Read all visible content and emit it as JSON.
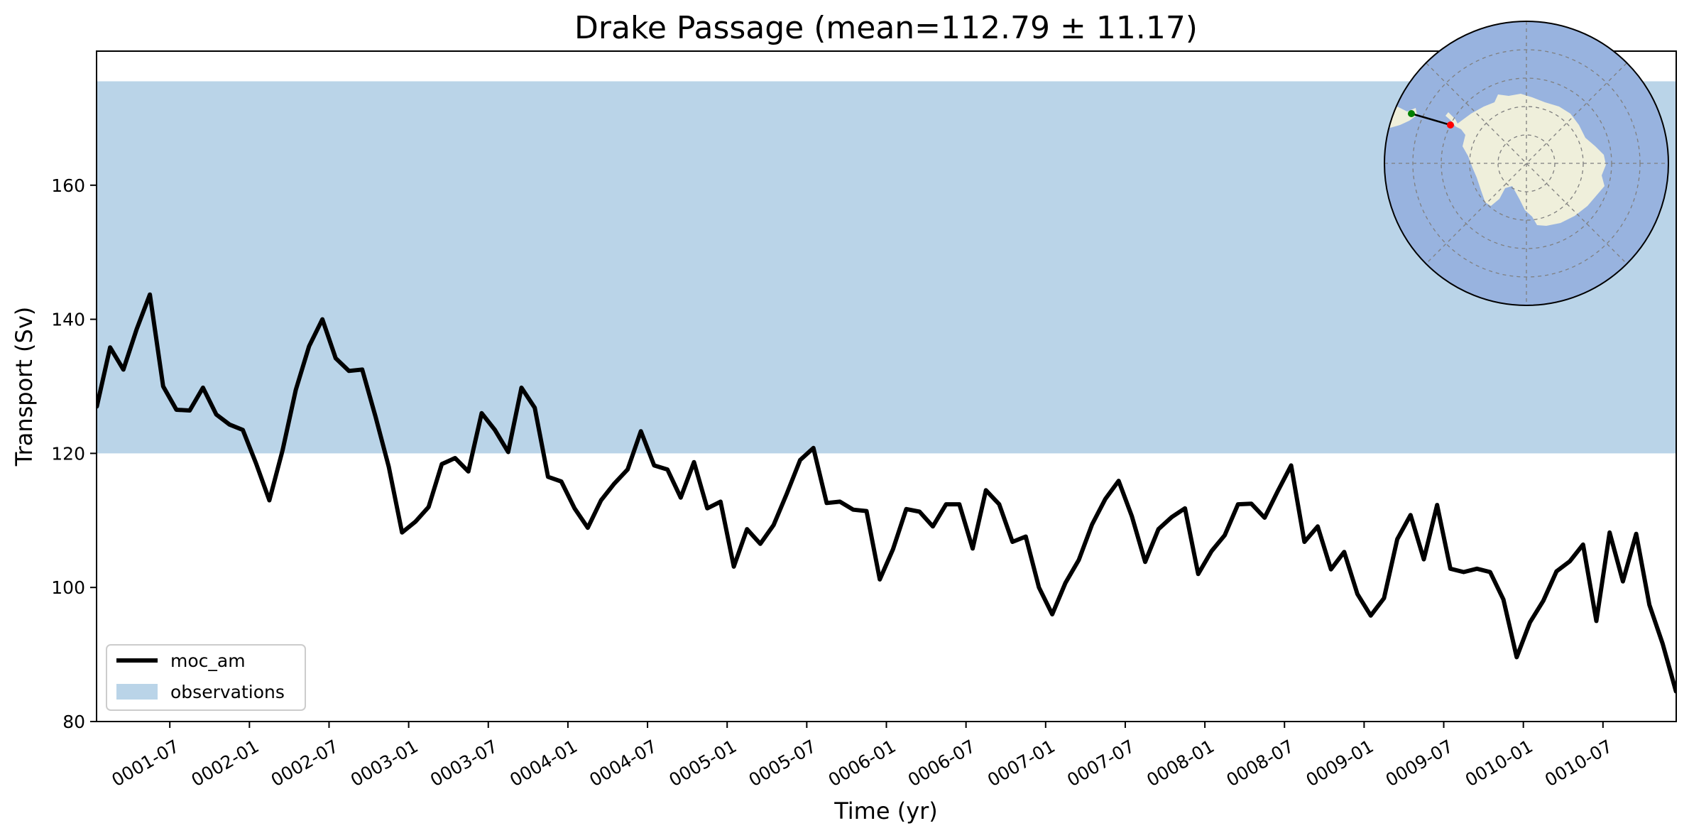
{
  "chart_data": {
    "type": "line",
    "title": "Drake Passage (mean=112.79 ± 11.17)",
    "xlabel": "Time (yr)",
    "ylabel": "Transport (Sv)",
    "ylim": [
      80,
      180
    ],
    "yticks": [
      80,
      100,
      120,
      140,
      160
    ],
    "xlim": [
      0.04,
      9.96
    ],
    "xticks": [
      {
        "label": "0001-07",
        "t": 0.5
      },
      {
        "label": "0002-01",
        "t": 1.0
      },
      {
        "label": "0002-07",
        "t": 1.5
      },
      {
        "label": "0003-01",
        "t": 2.0
      },
      {
        "label": "0003-07",
        "t": 2.5
      },
      {
        "label": "0004-01",
        "t": 3.0
      },
      {
        "label": "0004-07",
        "t": 3.5
      },
      {
        "label": "0005-01",
        "t": 4.0
      },
      {
        "label": "0005-07",
        "t": 4.5
      },
      {
        "label": "0006-01",
        "t": 5.0
      },
      {
        "label": "0006-07",
        "t": 5.5
      },
      {
        "label": "0007-01",
        "t": 6.0
      },
      {
        "label": "0007-07",
        "t": 6.5
      },
      {
        "label": "0008-01",
        "t": 7.0
      },
      {
        "label": "0008-07",
        "t": 7.5
      },
      {
        "label": "0009-01",
        "t": 8.0
      },
      {
        "label": "0009-07",
        "t": 8.5
      },
      {
        "label": "0010-01",
        "t": 9.0
      },
      {
        "label": "0010-07",
        "t": 9.5
      }
    ],
    "observations": {
      "name": "observations",
      "low": 120,
      "high": 175.5,
      "color": "#bad4e8"
    },
    "series": [
      {
        "name": "moc_am",
        "color": "#000000",
        "values": [
          127.0,
          135.8,
          132.5,
          138.5,
          143.7,
          130.0,
          126.5,
          126.4,
          129.8,
          125.8,
          124.3,
          123.5,
          118.5,
          113.0,
          120.5,
          129.5,
          136.0,
          140.0,
          134.2,
          132.3,
          132.5,
          125.5,
          118.0,
          108.2,
          109.8,
          112.0,
          118.4,
          119.3,
          117.3,
          126.0,
          123.5,
          120.2,
          129.8,
          126.8,
          116.5,
          115.8,
          111.8,
          108.9,
          113.0,
          115.5,
          117.6,
          123.3,
          118.2,
          117.6,
          113.4,
          118.7,
          111.8,
          112.8,
          103.1,
          108.7,
          106.5,
          109.3,
          114.0,
          119.0,
          120.8,
          112.6,
          112.8,
          111.6,
          111.4,
          101.2,
          105.7,
          111.7,
          111.3,
          109.1,
          112.4,
          112.4,
          105.8,
          114.5,
          112.4,
          106.8,
          107.6,
          100.0,
          96.0,
          100.7,
          104.1,
          109.4,
          113.2,
          115.9,
          110.6,
          103.8,
          108.7,
          110.5,
          111.8,
          102.0,
          105.4,
          107.8,
          112.4,
          112.5,
          110.4,
          114.4,
          118.2,
          106.8,
          109.1,
          102.7,
          105.3,
          99.0,
          95.8,
          98.4,
          107.2,
          110.8,
          104.2,
          112.3,
          102.8,
          102.3,
          102.8,
          102.3,
          98.2,
          89.6,
          94.8,
          98.0,
          102.4,
          103.9,
          106.4,
          95.0,
          108.2,
          100.9,
          108.0,
          97.4,
          91.6,
          84.5
        ]
      }
    ],
    "legend": {
      "position": "lower-left",
      "entries": [
        "moc_am",
        "observations"
      ]
    },
    "inset_map": {
      "description": "south polar stereographic map of Antarctica",
      "ocean_color": "#98b3df",
      "land_color": "#efefdb",
      "start_marker": "green",
      "end_marker": "red"
    }
  }
}
